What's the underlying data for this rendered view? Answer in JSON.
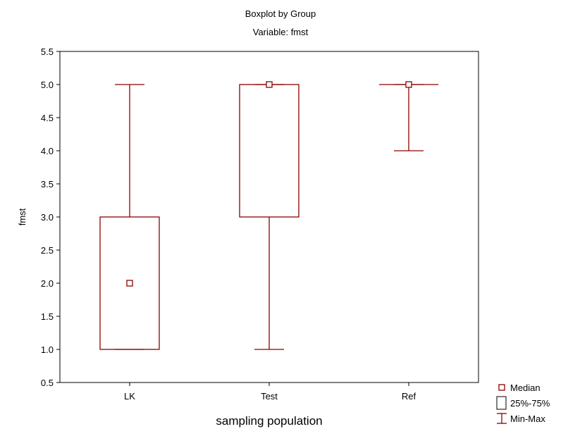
{
  "chart_data": {
    "type": "boxplot",
    "title": "Boxplot by Group",
    "subtitle": "Variable: fmst",
    "xlabel": "sampling population",
    "ylabel": "fmst",
    "ylim": [
      0.5,
      5.5
    ],
    "yticks": [
      "0.5",
      "1.0",
      "1.5",
      "2.0",
      "2.5",
      "3.0",
      "3.5",
      "4.0",
      "4.5",
      "5.0",
      "5.5"
    ],
    "grid": false,
    "legend_position": "bottom-right",
    "color": "#8b0000",
    "categories": [
      "LK",
      "Test",
      "Ref"
    ],
    "groups": [
      {
        "name": "LK",
        "min": 1.0,
        "q1": 1.0,
        "median": 2.0,
        "q3": 3.0,
        "max": 5.0
      },
      {
        "name": "Test",
        "min": 1.0,
        "q1": 3.0,
        "median": 5.0,
        "q3": 5.0,
        "max": 5.0
      },
      {
        "name": "Ref",
        "min": 4.0,
        "q1": 5.0,
        "median": 5.0,
        "q3": 5.0,
        "max": 5.0
      }
    ],
    "legend": [
      {
        "symbol": "median",
        "label": "Median"
      },
      {
        "symbol": "box",
        "label": "25%-75%"
      },
      {
        "symbol": "whisker",
        "label": "Min-Max"
      }
    ]
  }
}
